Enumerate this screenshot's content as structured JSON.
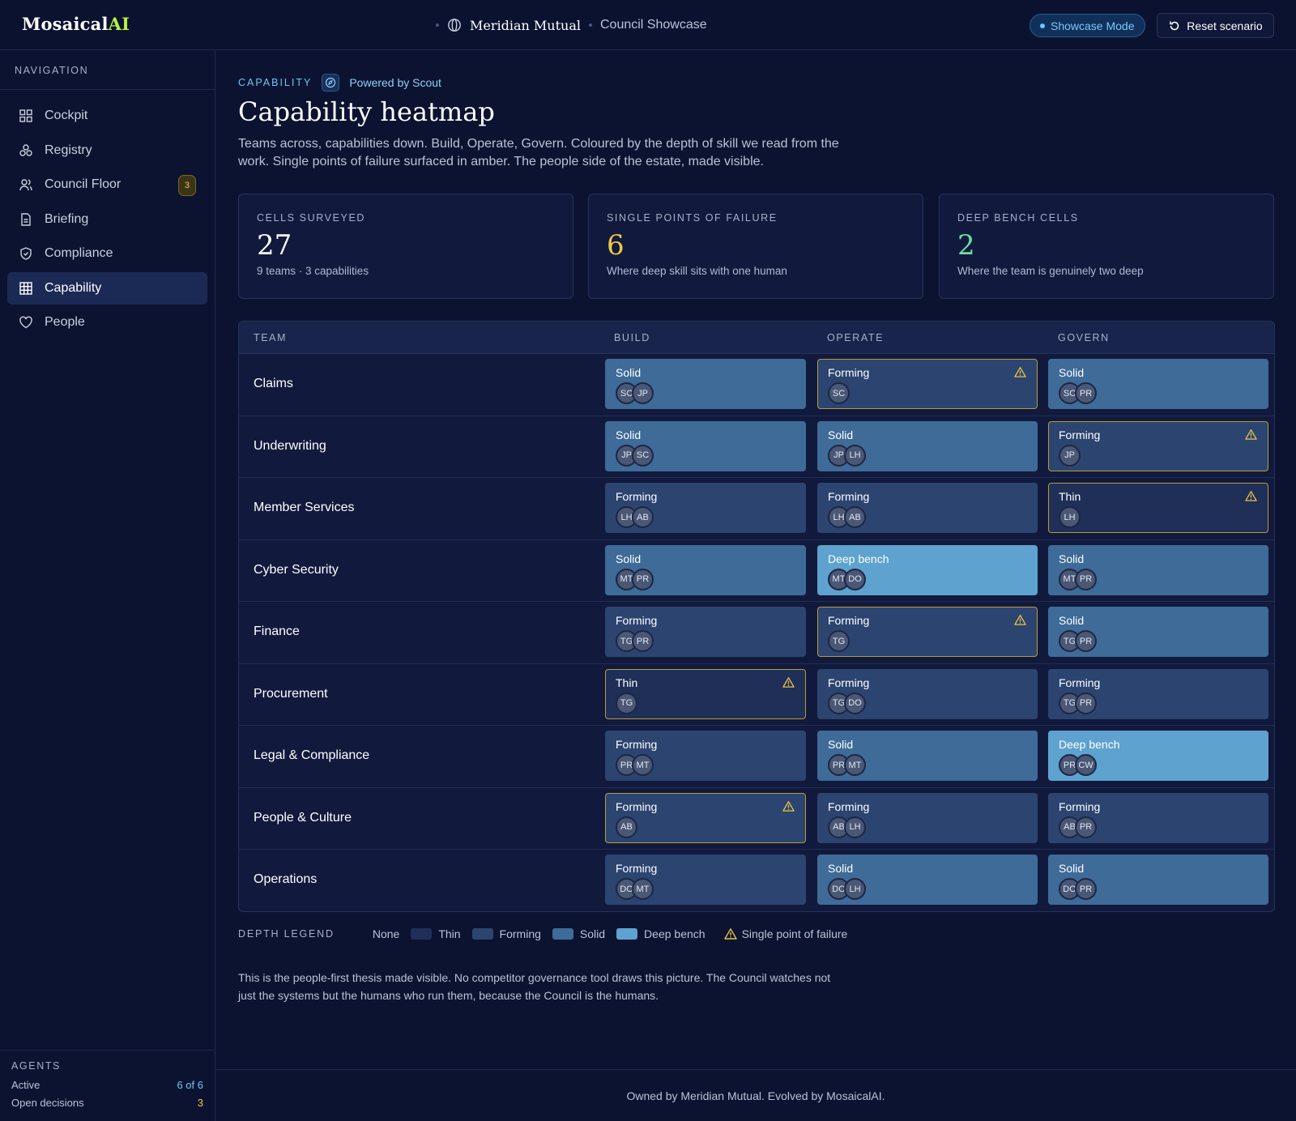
{
  "brand": {
    "name_main": "Mosaical",
    "name_accent": "AI"
  },
  "header": {
    "org": "Meridian Mutual",
    "page": "Council Showcase",
    "showcase_label": "Showcase Mode",
    "reset_label": "Reset scenario"
  },
  "sidebar": {
    "heading": "NAVIGATION",
    "items": [
      {
        "label": "Cockpit",
        "icon": "grid-icon"
      },
      {
        "label": "Registry",
        "icon": "cluster-icon"
      },
      {
        "label": "Council Floor",
        "icon": "users-icon",
        "badge": "3"
      },
      {
        "label": "Briefing",
        "icon": "document-icon"
      },
      {
        "label": "Compliance",
        "icon": "shield-icon"
      },
      {
        "label": "Capability",
        "icon": "table-icon",
        "active": true
      },
      {
        "label": "People",
        "icon": "heart-icon"
      }
    ],
    "agents": {
      "heading": "AGENTS",
      "active_label": "Active",
      "active_value": "6 of 6",
      "open_label": "Open decisions",
      "open_value": "3"
    }
  },
  "page": {
    "eyebrow": "CAPABILITY",
    "powered_by": "Powered by Scout",
    "title": "Capability heatmap",
    "lede": "Teams across, capabilities down. Build, Operate, Govern. Coloured by the depth of skill we read from the work. Single points of failure surfaced in amber. The people side of the estate, made visible."
  },
  "stats": [
    {
      "label": "CELLS SURVEYED",
      "value": "27",
      "sub": "9 teams · 3 capabilities"
    },
    {
      "label": "SINGLE POINTS OF FAILURE",
      "value": "6",
      "sub": "Where deep skill sits with one human"
    },
    {
      "label": "DEEP BENCH CELLS",
      "value": "2",
      "sub": "Where the team is genuinely two deep"
    }
  ],
  "table": {
    "headers": [
      "TEAM",
      "BUILD",
      "OPERATE",
      "GOVERN"
    ],
    "rows": [
      {
        "team": "Claims",
        "cells": [
          {
            "depth": "Solid",
            "people": [
              "SC",
              "JP"
            ],
            "spof": false
          },
          {
            "depth": "Forming",
            "people": [
              "SC"
            ],
            "spof": true
          },
          {
            "depth": "Solid",
            "people": [
              "SC",
              "PR"
            ],
            "spof": false
          }
        ]
      },
      {
        "team": "Underwriting",
        "cells": [
          {
            "depth": "Solid",
            "people": [
              "JP",
              "SC"
            ],
            "spof": false
          },
          {
            "depth": "Solid",
            "people": [
              "JP",
              "LH"
            ],
            "spof": false
          },
          {
            "depth": "Forming",
            "people": [
              "JP"
            ],
            "spof": true
          }
        ]
      },
      {
        "team": "Member Services",
        "cells": [
          {
            "depth": "Forming",
            "people": [
              "LH",
              "AB"
            ],
            "spof": false
          },
          {
            "depth": "Forming",
            "people": [
              "LH",
              "AB"
            ],
            "spof": false
          },
          {
            "depth": "Thin",
            "people": [
              "LH"
            ],
            "spof": true
          }
        ]
      },
      {
        "team": "Cyber Security",
        "cells": [
          {
            "depth": "Solid",
            "people": [
              "MT",
              "PR"
            ],
            "spof": false
          },
          {
            "depth": "Deep bench",
            "people": [
              "MT",
              "DO"
            ],
            "spof": false
          },
          {
            "depth": "Solid",
            "people": [
              "MT",
              "PR"
            ],
            "spof": false
          }
        ]
      },
      {
        "team": "Finance",
        "cells": [
          {
            "depth": "Forming",
            "people": [
              "TG",
              "PR"
            ],
            "spof": false
          },
          {
            "depth": "Forming",
            "people": [
              "TG"
            ],
            "spof": true
          },
          {
            "depth": "Solid",
            "people": [
              "TG",
              "PR"
            ],
            "spof": false
          }
        ]
      },
      {
        "team": "Procurement",
        "cells": [
          {
            "depth": "Thin",
            "people": [
              "TG"
            ],
            "spof": true
          },
          {
            "depth": "Forming",
            "people": [
              "TG",
              "DO"
            ],
            "spof": false
          },
          {
            "depth": "Forming",
            "people": [
              "TG",
              "PR"
            ],
            "spof": false
          }
        ]
      },
      {
        "team": "Legal & Compliance",
        "cells": [
          {
            "depth": "Forming",
            "people": [
              "PR",
              "MT"
            ],
            "spof": false
          },
          {
            "depth": "Solid",
            "people": [
              "PR",
              "MT"
            ],
            "spof": false
          },
          {
            "depth": "Deep bench",
            "people": [
              "PR",
              "CW"
            ],
            "spof": false
          }
        ]
      },
      {
        "team": "People & Culture",
        "cells": [
          {
            "depth": "Forming",
            "people": [
              "AB"
            ],
            "spof": true
          },
          {
            "depth": "Forming",
            "people": [
              "AB",
              "LH"
            ],
            "spof": false
          },
          {
            "depth": "Forming",
            "people": [
              "AB",
              "PR"
            ],
            "spof": false
          }
        ]
      },
      {
        "team": "Operations",
        "cells": [
          {
            "depth": "Forming",
            "people": [
              "DO",
              "MT"
            ],
            "spof": false
          },
          {
            "depth": "Solid",
            "people": [
              "DO",
              "LH"
            ],
            "spof": false
          },
          {
            "depth": "Solid",
            "people": [
              "DO",
              "PR"
            ],
            "spof": false
          }
        ]
      }
    ]
  },
  "legend": {
    "title": "DEPTH LEGEND",
    "items": [
      "None",
      "Thin",
      "Forming",
      "Solid",
      "Deep bench"
    ],
    "spof_label": "Single point of failure",
    "colors": {
      "thin": "#1f2f58",
      "forming": "#2c4470",
      "solid": "#3e6b98",
      "deep": "#5ea2cf",
      "spof": "#e7c145"
    }
  },
  "footnote": "This is the people-first thesis made visible. No competitor governance tool draws this picture. The Council watches not just the systems but the humans who run them, because the Council is the humans.",
  "footer": "Owned by Meridian Mutual. Evolved by MosaicalAI."
}
